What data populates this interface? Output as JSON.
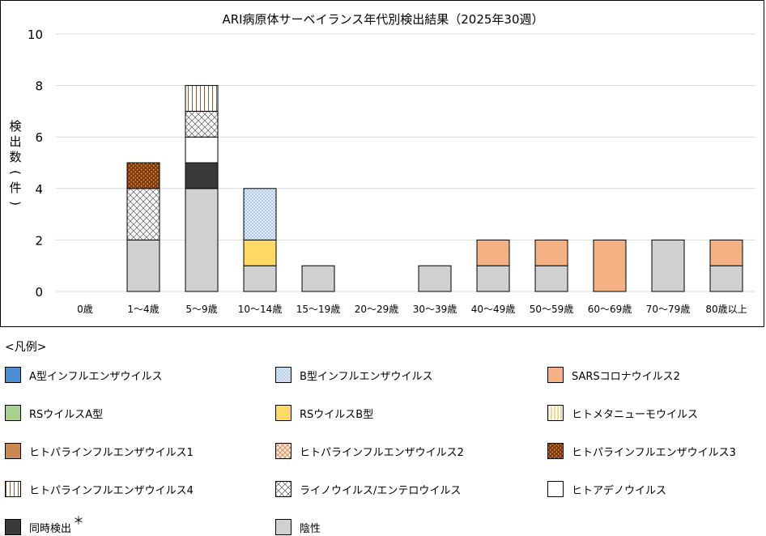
{
  "chart_data": {
    "type": "bar",
    "stacked": true,
    "title": "ARI病原体サーベイランス年代別検出結果（2025年30週）",
    "ylabel": "検出数(件)",
    "xlabel": "",
    "ylim": [
      0,
      10
    ],
    "yticks": [
      "0",
      "2",
      "4",
      "6",
      "8",
      "10"
    ],
    "grid": true,
    "categories": [
      "0歳",
      "1〜4歳",
      "5〜9歳",
      "10〜14歳",
      "15〜19歳",
      "20〜29歳",
      "30〜39歳",
      "40〜49歳",
      "50〜59歳",
      "60〜69歳",
      "70〜79歳",
      "80歳以上"
    ],
    "series": [
      {
        "name": "A型インフルエンザウイルス",
        "key": "flu_a",
        "color": "#4a8ed4",
        "pattern": "solid",
        "values": [
          0,
          0,
          0,
          0,
          0,
          0,
          0,
          0,
          0,
          0,
          0,
          0
        ]
      },
      {
        "name": "B型インフルエンザウイルス",
        "key": "flu_b",
        "color": "#dce9f5",
        "pattern": "dots",
        "values": [
          0,
          0,
          0,
          2,
          0,
          0,
          0,
          0,
          0,
          0,
          0,
          0
        ]
      },
      {
        "name": "SARSコロナウイルス2",
        "key": "sars2",
        "color": "#f4b183",
        "pattern": "solid",
        "values": [
          0,
          0,
          0,
          0,
          0,
          0,
          0,
          1,
          1,
          2,
          0,
          1
        ]
      },
      {
        "name": "RSウイルスA型",
        "key": "rsv_a",
        "color": "#a9d18e",
        "pattern": "solid",
        "values": [
          0,
          0,
          0,
          0,
          0,
          0,
          0,
          0,
          0,
          0,
          0,
          0
        ]
      },
      {
        "name": "RSウイルスB型",
        "key": "rsv_b",
        "color": "#ffd966",
        "pattern": "solid",
        "values": [
          0,
          0,
          0,
          1,
          0,
          0,
          0,
          0,
          0,
          0,
          0,
          0
        ]
      },
      {
        "name": "ヒトメタニューモウイルス",
        "key": "hmpv",
        "color": "#fff2cc",
        "pattern": "vlines",
        "values": [
          0,
          0,
          0,
          0,
          0,
          0,
          0,
          0,
          0,
          0,
          0,
          0
        ]
      },
      {
        "name": "ヒトパラインフルエンザウイルス1",
        "key": "hpiv1",
        "color": "#c9894f",
        "pattern": "solid",
        "values": [
          0,
          0,
          0,
          0,
          0,
          0,
          0,
          0,
          0,
          0,
          0,
          0
        ]
      },
      {
        "name": "ヒトパラインフルエンザウイルス2",
        "key": "hpiv2",
        "color": "#fbe5d6",
        "pattern": "check",
        "values": [
          0,
          0,
          0,
          0,
          0,
          0,
          0,
          0,
          0,
          0,
          0,
          0
        ]
      },
      {
        "name": "ヒトパラインフルエンザウイルス3",
        "key": "hpiv3",
        "color": "#843c0c",
        "pattern": "dotsdark",
        "values": [
          0,
          1,
          0,
          0,
          0,
          0,
          0,
          0,
          0,
          0,
          0,
          0
        ]
      },
      {
        "name": "ヒトパラインフルエンザウイルス4",
        "key": "hpiv4",
        "color": "#fbe5d6",
        "pattern": "vlinesbrown",
        "values": [
          0,
          0,
          1,
          0,
          0,
          0,
          0,
          0,
          0,
          0,
          0,
          0
        ]
      },
      {
        "name": "ライノウイルス/エンテロウイルス",
        "key": "rhino",
        "color": "#ffffff",
        "pattern": "crosshatch",
        "values": [
          0,
          2,
          1,
          0,
          0,
          0,
          0,
          0,
          0,
          0,
          0,
          0
        ]
      },
      {
        "name": "ヒトアデノウイルス",
        "key": "adeno",
        "color": "#ffffff",
        "pattern": "solid",
        "values": [
          0,
          0,
          1,
          0,
          0,
          0,
          0,
          0,
          0,
          0,
          0,
          0
        ]
      },
      {
        "name": "同時検出",
        "key": "coinf",
        "color": "#3a3a3a",
        "pattern": "solid",
        "values": [
          0,
          0,
          1,
          0,
          0,
          0,
          0,
          0,
          0,
          0,
          0,
          0
        ]
      },
      {
        "name": "陰性",
        "key": "neg",
        "color": "#d0d0d0",
        "pattern": "solid",
        "values": [
          0,
          2,
          4,
          1,
          1,
          0,
          1,
          1,
          1,
          0,
          2,
          1
        ]
      }
    ],
    "stack_order": [
      "neg",
      "coinf",
      "adeno",
      "rsv_b",
      "flu_b",
      "sars2",
      "rhino",
      "hpiv3",
      "hpiv4"
    ]
  },
  "legend": {
    "header": "<凡例>",
    "coinfection_note": "＊"
  }
}
